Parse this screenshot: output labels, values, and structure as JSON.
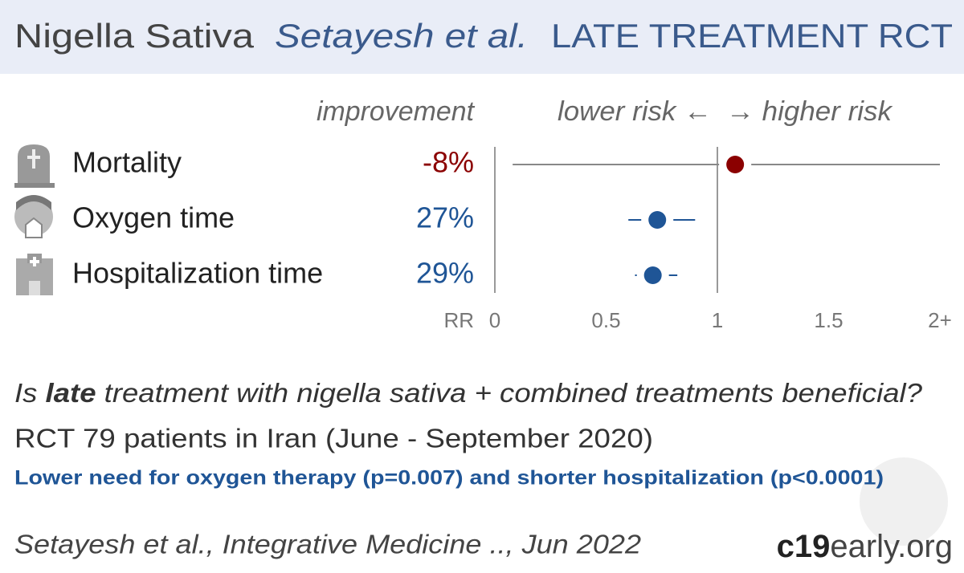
{
  "chart_data": {
    "type": "forest",
    "title": "Nigella Sativa",
    "subtitle": "Setayesh et al.",
    "tag": "LATE TREATMENT RCT",
    "improvement_header": "improvement",
    "lower_label": "lower risk ←",
    "higher_label": "→ higher risk",
    "categories": [
      "Mortality",
      "Oxygen time",
      "Hospitalization time"
    ],
    "improvement": [
      -8,
      27,
      29
    ],
    "value_labels": [
      "-8%",
      "27%",
      "29%"
    ],
    "values": [
      1.08,
      0.73,
      0.71
    ],
    "ci_lower": [
      0.08,
      0.6,
      0.63
    ],
    "ci_upper": [
      2,
      0.9,
      0.82
    ],
    "point_colors": [
      "#8b0000",
      "#1f5596",
      "#1f5596"
    ],
    "x_label": "RR",
    "xlim": [
      0,
      2
    ],
    "xticks": [
      0,
      0.5,
      1,
      1.5,
      {
        "value": 2,
        "label": "2+"
      }
    ],
    "question": [
      "Is ",
      "late",
      " treatment with nigella sativa + combined treatments beneficial?"
    ],
    "study": "RCT 79 patients in Iran (June - September 2020)",
    "finding": "Lower need for oxygen therapy (p=0.007) and shorter hospitalization (p<0.0001)",
    "citation": "Setayesh et al., Integrative Medicine .., Jun 2022",
    "brand": [
      "c19",
      "early.org"
    ]
  }
}
